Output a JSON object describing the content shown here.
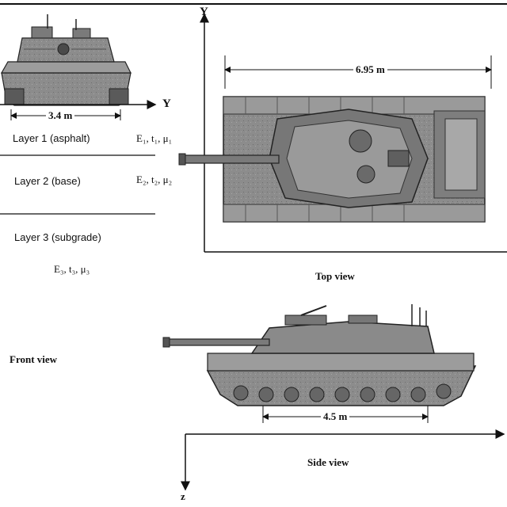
{
  "axes": {
    "y_top": "Y",
    "y_front": "Y",
    "z": "z"
  },
  "dimensions": {
    "width": "3.4 m",
    "length": "6.95 m",
    "track_length": "4.5 m"
  },
  "layers": [
    {
      "name": "Layer 1 (asphalt)",
      "params": "E₁, t₁, μ₁"
    },
    {
      "name": "Layer 2 (base)",
      "params": "E₂, t₂, μ₂"
    },
    {
      "name": "Layer 3 (subgrade)",
      "params": "E₃, t₃, μ₃"
    }
  ],
  "views": {
    "top": "Top view",
    "front": "Front view",
    "side": "Side view"
  },
  "colors": {
    "ink": "#111111",
    "tank_fill": "#8c8c8c",
    "tank_dark": "#5a5a5a",
    "tank_light": "#b4b4b4",
    "background": "#ffffff"
  }
}
